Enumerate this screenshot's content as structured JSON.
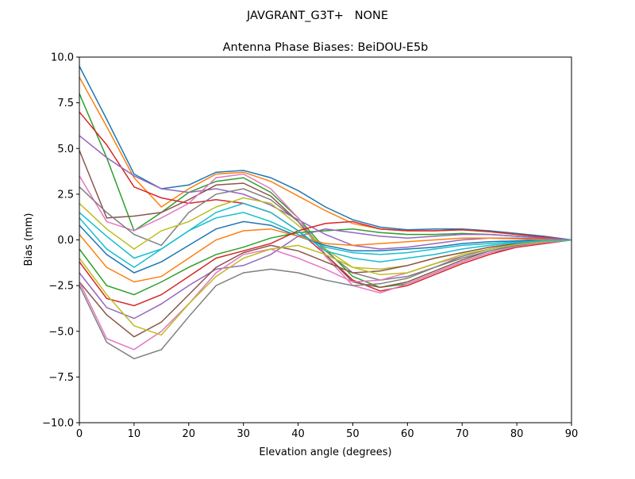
{
  "chart_data": {
    "type": "line",
    "suptitle": "JAVGRANT_G3T+   NONE",
    "title": "Antenna Phase Biases: BeiDOU-E5b",
    "xlabel": "Elevation angle (degrees)",
    "ylabel": "Bias (mm)",
    "xlim": [
      0,
      90
    ],
    "ylim": [
      -10,
      10
    ],
    "grid": false,
    "x_ticks": [
      0,
      10,
      20,
      30,
      40,
      50,
      60,
      70,
      80,
      90
    ],
    "x_tick_labels": [
      "0",
      "10",
      "20",
      "30",
      "40",
      "50",
      "60",
      "70",
      "80",
      "90"
    ],
    "y_ticks": [
      -10,
      -7.5,
      -5,
      -2.5,
      0,
      2.5,
      5,
      7.5,
      10
    ],
    "y_tick_labels": [
      "−10.0",
      "−7.5",
      "−5.0",
      "−2.5",
      "0.0",
      "2.5",
      "5.0",
      "7.5",
      "10.0"
    ],
    "colors": [
      "#1f77b4",
      "#ff7f0e",
      "#2ca02c",
      "#d62728",
      "#9467bd",
      "#8c564b",
      "#e377c2",
      "#7f7f7f",
      "#bcbd22",
      "#17becf"
    ],
    "x": [
      0,
      5,
      10,
      15,
      20,
      25,
      30,
      35,
      40,
      45,
      50,
      55,
      60,
      65,
      70,
      75,
      80,
      85,
      90
    ],
    "series": [
      {
        "values": [
          9.5,
          6.6,
          3.6,
          2.8,
          3.0,
          3.7,
          3.8,
          3.4,
          2.7,
          1.8,
          1.1,
          0.7,
          0.55,
          0.6,
          0.6,
          0.5,
          0.35,
          0.2,
          0
        ]
      },
      {
        "values": [
          8.9,
          6.2,
          3.4,
          1.8,
          2.8,
          3.6,
          3.7,
          3.2,
          2.4,
          1.6,
          0.9,
          0.6,
          0.5,
          0.5,
          0.55,
          0.45,
          0.3,
          0.15,
          0
        ]
      },
      {
        "values": [
          8.0,
          4.5,
          0.5,
          1.5,
          2.6,
          3.2,
          3.4,
          2.6,
          1.2,
          -0.5,
          -2.0,
          -2.6,
          -2.4,
          -1.8,
          -1.2,
          -0.7,
          -0.4,
          -0.2,
          0
        ]
      },
      {
        "values": [
          7.0,
          5.2,
          2.9,
          2.3,
          2.0,
          2.2,
          2.0,
          1.5,
          0.5,
          -0.8,
          -2.2,
          -2.8,
          -2.5,
          -1.9,
          -1.3,
          -0.8,
          -0.4,
          -0.2,
          0
        ]
      },
      {
        "values": [
          5.7,
          4.5,
          3.5,
          2.8,
          2.6,
          2.8,
          2.5,
          1.9,
          1.1,
          0.3,
          -0.3,
          -0.5,
          -0.4,
          -0.2,
          0,
          0.1,
          0.1,
          0.05,
          0
        ]
      },
      {
        "values": [
          4.9,
          1.2,
          1.3,
          1.5,
          2.2,
          3.0,
          3.1,
          2.4,
          1.0,
          -0.8,
          -2.3,
          -2.6,
          -2.3,
          -1.7,
          -1.1,
          -0.6,
          -0.3,
          -0.1,
          0
        ]
      },
      {
        "values": [
          3.5,
          1.0,
          0.5,
          1.2,
          2.0,
          3.4,
          3.6,
          2.8,
          1.2,
          -0.9,
          -2.5,
          -2.9,
          -2.4,
          -1.8,
          -1.2,
          -0.7,
          -0.35,
          -0.15,
          0
        ]
      },
      {
        "values": [
          2.9,
          1.5,
          0.3,
          -0.3,
          1.5,
          2.5,
          2.8,
          2.2,
          1.0,
          -0.6,
          -1.8,
          -2.2,
          -2.0,
          -1.5,
          -1.0,
          -0.6,
          -0.3,
          -0.1,
          0
        ]
      },
      {
        "values": [
          2.0,
          0.6,
          -0.5,
          0.5,
          1.0,
          1.8,
          2.3,
          2.0,
          0.8,
          -0.5,
          -1.5,
          -1.6,
          -1.4,
          -1.0,
          -0.7,
          -0.4,
          -0.2,
          -0.1,
          0
        ]
      },
      {
        "values": [
          1.5,
          0.2,
          -1.0,
          -0.5,
          0.5,
          1.2,
          1.5,
          1.0,
          0.3,
          -0.4,
          -0.7,
          -0.8,
          -0.7,
          -0.5,
          -0.3,
          -0.2,
          -0.1,
          0,
          0
        ]
      },
      {
        "values": [
          0.8,
          -0.8,
          -1.8,
          -1.2,
          -0.3,
          0.6,
          1.0,
          0.8,
          0.2,
          -0.3,
          -0.6,
          -0.6,
          -0.5,
          -0.4,
          -0.2,
          -0.1,
          -0.05,
          0,
          0
        ]
      },
      {
        "values": [
          0.3,
          -1.5,
          -2.3,
          -2.0,
          -1.0,
          0,
          0.5,
          0.6,
          0.2,
          -0.2,
          -0.3,
          -0.2,
          -0.1,
          0,
          0.1,
          0.1,
          0.05,
          0,
          0
        ]
      },
      {
        "values": [
          -0.5,
          -2.5,
          -3.0,
          -2.3,
          -1.5,
          -0.8,
          -0.4,
          0.1,
          0.4,
          0.5,
          0.6,
          0.4,
          0.3,
          0.3,
          0.35,
          0.3,
          0.2,
          0.1,
          0
        ]
      },
      {
        "values": [
          -1.2,
          -3.2,
          -3.6,
          -3.0,
          -2.0,
          -1.0,
          -0.6,
          -0.2,
          0.5,
          0.9,
          1.0,
          0.6,
          0.5,
          0.5,
          0.55,
          0.45,
          0.3,
          0.15,
          0
        ]
      },
      {
        "values": [
          -1.8,
          -3.7,
          -4.3,
          -3.5,
          -2.5,
          -1.6,
          -1.4,
          -0.8,
          0.2,
          0.6,
          0.4,
          0.2,
          0.1,
          0.2,
          0.3,
          0.3,
          0.2,
          0.1,
          0
        ]
      },
      {
        "values": [
          -2.3,
          -4.1,
          -5.3,
          -4.5,
          -3.0,
          -1.5,
          -0.7,
          -0.3,
          -0.6,
          -1.2,
          -1.8,
          -1.7,
          -1.4,
          -1.0,
          -0.7,
          -0.4,
          -0.2,
          -0.1,
          0
        ]
      },
      {
        "values": [
          -2.3,
          -5.4,
          -6.0,
          -5.0,
          -3.5,
          -1.8,
          -0.8,
          -0.5,
          -1.0,
          -1.6,
          -2.3,
          -2.2,
          -1.8,
          -1.3,
          -0.9,
          -0.5,
          -0.25,
          -0.1,
          0
        ]
      },
      {
        "values": [
          -2.5,
          -5.6,
          -6.5,
          -6.0,
          -4.2,
          -2.5,
          -1.8,
          -1.6,
          -1.8,
          -2.2,
          -2.5,
          -2.4,
          -2.1,
          -1.5,
          -0.9,
          -0.5,
          -0.25,
          -0.1,
          0
        ]
      },
      {
        "values": [
          -1.0,
          -3.0,
          -4.7,
          -5.2,
          -3.5,
          -2.0,
          -1.0,
          -0.5,
          -0.3,
          -0.8,
          -1.5,
          -1.9,
          -1.8,
          -1.3,
          -0.8,
          -0.5,
          -0.25,
          -0.1,
          0
        ]
      },
      {
        "values": [
          1.2,
          -0.5,
          -1.5,
          -0.5,
          0.5,
          1.5,
          2.0,
          1.5,
          0.5,
          -0.6,
          -1.0,
          -1.2,
          -1.0,
          -0.8,
          -0.5,
          -0.3,
          -0.15,
          -0.05,
          0
        ]
      }
    ]
  }
}
